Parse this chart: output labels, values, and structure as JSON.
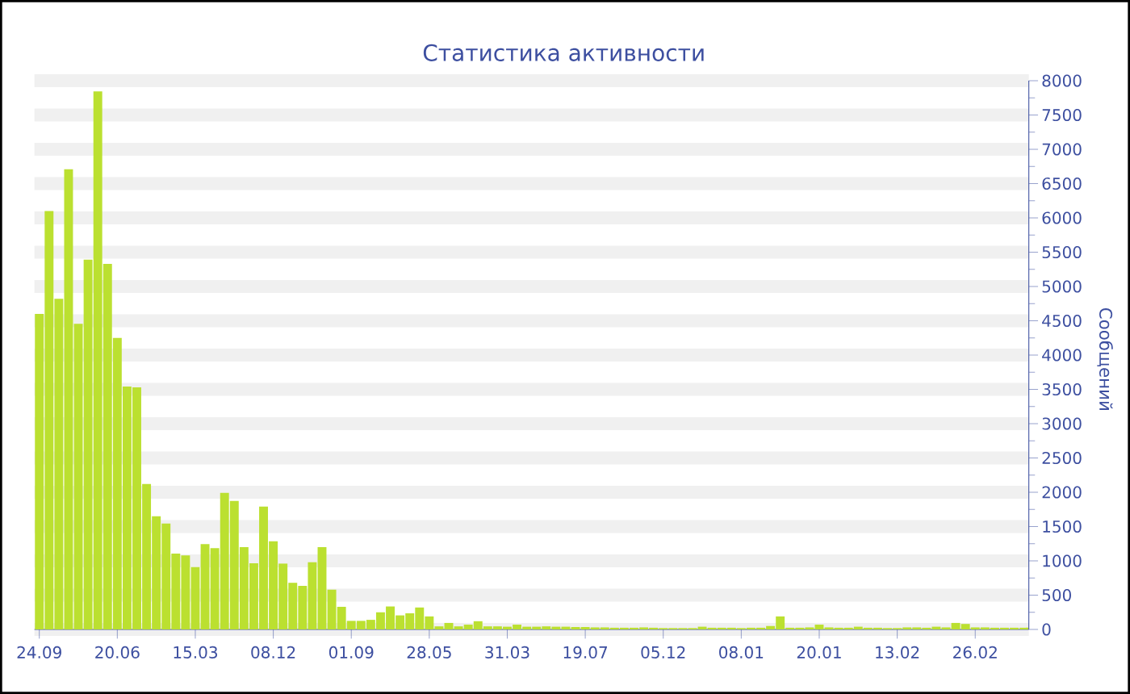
{
  "chart_data": {
    "type": "bar",
    "title": "Статистика активности",
    "ylabel": "Сообщений",
    "categories": [
      "24.09",
      null,
      null,
      null,
      null,
      null,
      null,
      null,
      "20.06",
      null,
      null,
      null,
      null,
      null,
      null,
      null,
      "15.03",
      null,
      null,
      null,
      null,
      null,
      null,
      null,
      "08.12",
      null,
      null,
      null,
      null,
      null,
      null,
      null,
      "01.09",
      null,
      null,
      null,
      null,
      null,
      null,
      null,
      "28.05",
      null,
      null,
      null,
      null,
      null,
      null,
      null,
      "31.03",
      null,
      null,
      null,
      null,
      null,
      null,
      null,
      "19.07",
      null,
      null,
      null,
      null,
      null,
      null,
      null,
      "05.12",
      null,
      null,
      null,
      null,
      null,
      null,
      null,
      "08.01",
      null,
      null,
      null,
      null,
      null,
      null,
      null,
      "20.01",
      null,
      null,
      null,
      null,
      null,
      null,
      null,
      "13.02",
      null,
      null,
      null,
      null,
      null,
      null,
      null,
      "26.02",
      null,
      null,
      null,
      null,
      null
    ],
    "values": [
      4600,
      6100,
      4820,
      6710,
      4455,
      5390,
      7845,
      5330,
      4250,
      3540,
      3530,
      2120,
      1650,
      1545,
      1105,
      1080,
      910,
      1245,
      1185,
      1990,
      1875,
      1200,
      965,
      1790,
      1285,
      960,
      680,
      635,
      980,
      1200,
      580,
      330,
      125,
      125,
      140,
      250,
      335,
      205,
      235,
      320,
      190,
      45,
      95,
      45,
      70,
      120,
      45,
      45,
      40,
      70,
      40,
      40,
      45,
      40,
      40,
      35,
      35,
      30,
      30,
      25,
      25,
      25,
      30,
      25,
      20,
      20,
      20,
      20,
      40,
      25,
      25,
      25,
      20,
      25,
      25,
      50,
      190,
      25,
      25,
      30,
      70,
      30,
      25,
      25,
      40,
      25,
      25,
      20,
      20,
      30,
      30,
      25,
      40,
      30,
      95,
      80,
      30,
      30,
      25,
      25,
      25,
      25
    ],
    "color": "#bbe030",
    "ylim": [
      0,
      8000
    ],
    "yticks": [
      0,
      500,
      1000,
      1500,
      2000,
      2500,
      3000,
      3500,
      4000,
      4500,
      5000,
      5500,
      6000,
      6500,
      7000,
      7500,
      8000
    ],
    "grid": "y"
  }
}
